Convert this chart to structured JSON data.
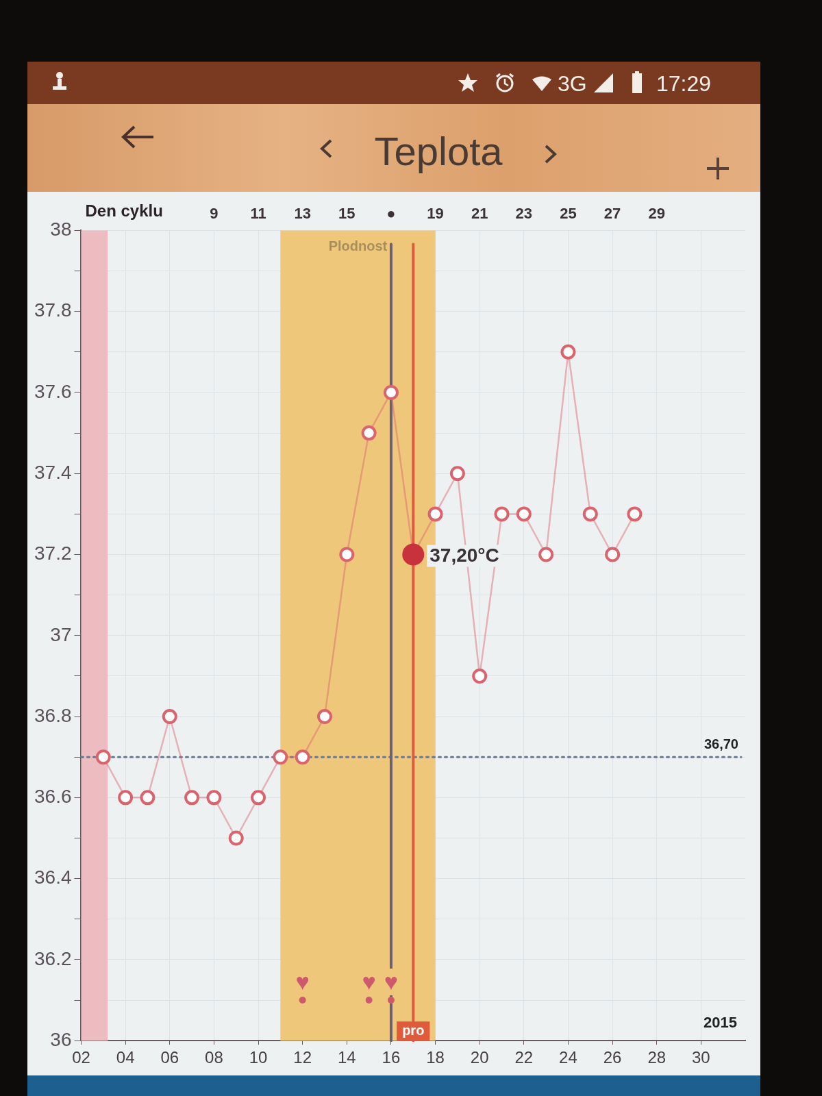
{
  "chart_data": {
    "type": "line",
    "title": "Teplota",
    "x2label": "Den cyklu",
    "x": [
      3,
      4,
      5,
      6,
      7,
      8,
      9,
      10,
      11,
      12,
      13,
      14,
      15,
      16,
      17,
      18,
      19,
      20,
      21,
      22,
      23,
      24,
      25,
      26,
      27
    ],
    "series": [
      {
        "color": "#d9646e",
        "values": [
          36.7,
          36.6,
          36.6,
          36.8,
          36.6,
          36.6,
          36.5,
          36.6,
          36.7,
          36.7,
          36.8,
          37.2,
          37.5,
          37.6,
          37.2,
          37.3,
          37.4,
          36.9,
          37.3,
          37.3,
          37.2,
          37.7,
          37.3,
          37.2,
          37.3
        ]
      },
      {
        "type": "scatter",
        "color": "#c8323c",
        "x": [
          17
        ],
        "values": [
          37.2
        ]
      },
      {
        "type": "scatter",
        "color": "#cc5a6c",
        "x": [
          12,
          15,
          16
        ],
        "values": [
          36.1,
          36.1,
          36.1
        ],
        "value_labels": [
          "♥",
          "♥",
          "♥"
        ]
      }
    ],
    "xlim": [
      2,
      32
    ],
    "xticks": [
      {
        "value": 2,
        "label": "02"
      },
      {
        "value": 4,
        "label": "04"
      },
      {
        "value": 6,
        "label": "06"
      },
      {
        "value": 8,
        "label": "08"
      },
      10,
      12,
      14,
      16,
      18,
      20,
      22,
      24,
      26,
      28,
      30
    ],
    "x2lim": [
      3,
      33
    ],
    "x2ticks": [
      9,
      11,
      13,
      15,
      {
        "value": 17,
        "label": "●"
      },
      19,
      21,
      23,
      25,
      27,
      29
    ],
    "ylim": [
      36,
      38
    ],
    "yticks": [
      36,
      {
        "value": 36.1,
        "label": null
      },
      36.2,
      {
        "value": 36.3,
        "label": null
      },
      36.4,
      {
        "value": 36.5,
        "label": null
      },
      36.6,
      {
        "value": 36.7,
        "label": null
      },
      36.8,
      {
        "value": 36.9,
        "label": null
      },
      37,
      {
        "value": 37.1,
        "label": null
      },
      37.2,
      {
        "value": 37.3,
        "label": null
      },
      37.4,
      {
        "value": 37.5,
        "label": null
      },
      37.6,
      {
        "value": 37.7,
        "label": null
      },
      37.8,
      {
        "value": 37.9,
        "label": null
      },
      38
    ],
    "grid": true,
    "marker": "circle",
    "line_style": "solid",
    "ref_lines": [
      {
        "axis": "y",
        "value": 36.7,
        "label": "36,70",
        "color": "#6a7890",
        "line_style": "dotted"
      },
      {
        "axis": "x",
        "value": 16,
        "color": "#6e6070"
      },
      {
        "axis": "x",
        "value": 17,
        "label": "pro",
        "color": "#e05a3c"
      }
    ],
    "bands": [
      {
        "axis": "x",
        "from": 2,
        "to": 3.2,
        "color": "#ecbcc0"
      },
      {
        "axis": "x",
        "from": 11,
        "to": 18,
        "label": "Plodnost",
        "color": "#efc77a"
      }
    ],
    "annotations": [
      "3G",
      "17:29",
      "2015",
      {
        "text": "37,20°C",
        "x": 17,
        "y": 37.2
      }
    ]
  }
}
